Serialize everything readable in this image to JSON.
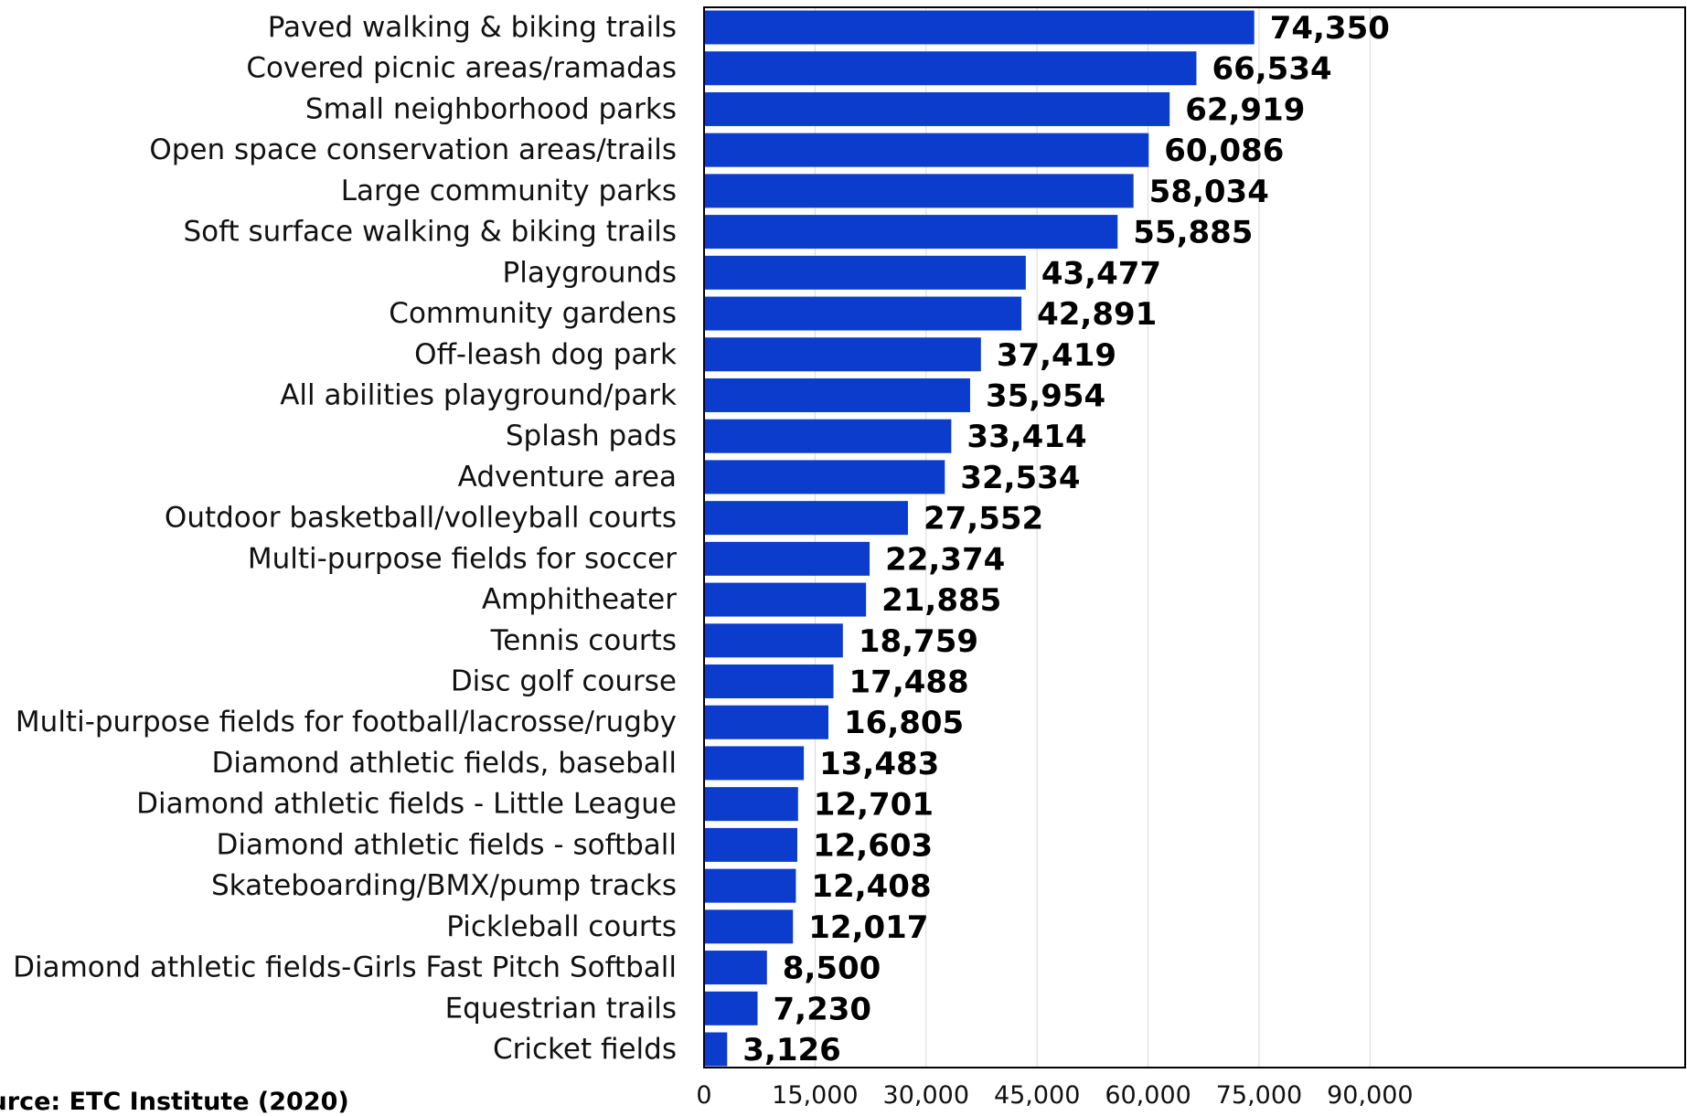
{
  "chart_data": {
    "type": "bar",
    "orientation": "horizontal",
    "categories": [
      "Paved walking & biking trails",
      "Covered picnic areas/ramadas",
      "Small neighborhood parks",
      "Open space conservation areas/trails",
      "Large community parks",
      "Soft surface walking & biking trails",
      "Playgrounds",
      "Community gardens",
      "Off-leash dog park",
      "All abilities playground/park",
      "Splash pads",
      "Adventure area",
      "Outdoor basketball/volleyball courts",
      "Multi-purpose fields for soccer",
      "Amphitheater",
      "Tennis courts",
      "Disc golf course",
      "Multi-purpose fields for football/lacrosse/rugby",
      "Diamond athletic fields, baseball",
      "Diamond athletic fields - Little League",
      "Diamond athletic fields - softball",
      "Skateboarding/BMX/pump tracks",
      "Pickleball courts",
      "Diamond athletic fields-Girls Fast Pitch Softball",
      "Equestrian trails",
      "Cricket fields"
    ],
    "values": [
      74350,
      66534,
      62919,
      60086,
      58034,
      55885,
      43477,
      42891,
      37419,
      35954,
      33414,
      32534,
      27552,
      22374,
      21885,
      18759,
      17488,
      16805,
      13483,
      12701,
      12603,
      12408,
      12017,
      8500,
      7230,
      3126
    ],
    "value_labels": [
      "74,350",
      "66,534",
      "62,919",
      "60,086",
      "58,034",
      "55,885",
      "43,477",
      "42,891",
      "37,419",
      "35,954",
      "33,414",
      "32,534",
      "27,552",
      "22,374",
      "21,885",
      "18,759",
      "17,488",
      "16,805",
      "13,483",
      "12,701",
      "12,603",
      "12,408",
      "12,017",
      "8,500",
      "7,230",
      "3,126"
    ],
    "ticks": [
      0,
      15000,
      30000,
      45000,
      60000,
      75000,
      90000
    ],
    "tick_labels": [
      "0",
      "15,000",
      "30,000",
      "45,000",
      "60,000",
      "75,000",
      "90,000"
    ],
    "xlim": [
      0,
      100000
    ],
    "grid": "vertical",
    "legend": "none",
    "bar_color": "#0b3ccc",
    "source_note": "ource:  ETC Institute (2020)"
  }
}
